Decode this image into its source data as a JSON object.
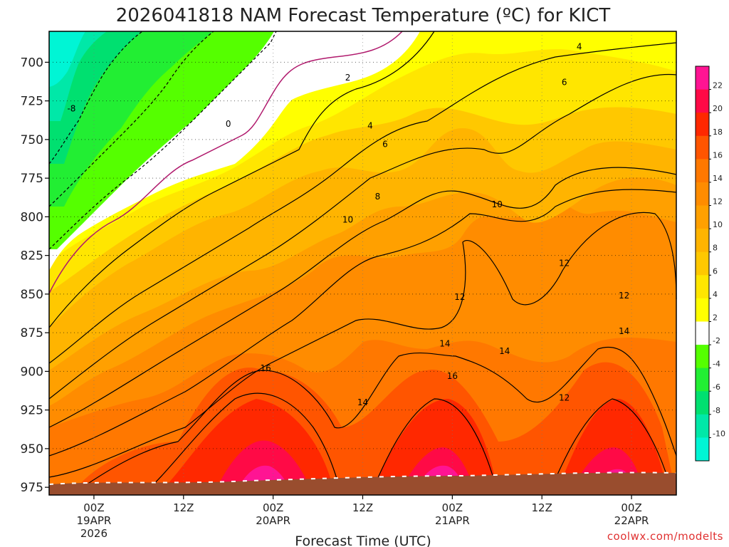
{
  "chart_data": {
    "type": "heatmap",
    "title": "2026041818 NAM Forecast Temperature (ºC) for KICT",
    "xlabel": "Forecast Time (UTC)",
    "ylabel": "",
    "y_ticks": [
      700,
      725,
      750,
      775,
      800,
      825,
      850,
      875,
      900,
      925,
      950,
      975
    ],
    "ylim": [
      980,
      680
    ],
    "x_ticks": [
      {
        "hour": 6,
        "lines": [
          "00Z",
          "19APR",
          "2026"
        ]
      },
      {
        "hour": 18,
        "lines": [
          "12Z"
        ]
      },
      {
        "hour": 30,
        "lines": [
          "00Z",
          "20APR"
        ]
      },
      {
        "hour": 42,
        "lines": [
          "12Z"
        ]
      },
      {
        "hour": 54,
        "lines": [
          "00Z",
          "21APR"
        ]
      },
      {
        "hour": 66,
        "lines": [
          "12Z"
        ]
      },
      {
        "hour": 78,
        "lines": [
          "00Z",
          "22APR"
        ]
      }
    ],
    "xlim": [
      0,
      84
    ],
    "colorbar": {
      "tick_labels": [
        "22",
        "20",
        "18",
        "16",
        "14",
        "12",
        "10",
        "8",
        "6",
        "4",
        "2",
        "-2",
        "-4",
        "-6",
        "-8",
        "-10"
      ],
      "colors": [
        "#ff1493",
        "#ff0a46",
        "#ff2800",
        "#ff5500",
        "#ff7800",
        "#ff8c00",
        "#ffa000",
        "#ffb400",
        "#ffc800",
        "#ffe600",
        "#ffff00",
        "#ffffff",
        "#55ff00",
        "#22ee33",
        "#00e070",
        "#00e8a8",
        "#00f5d5"
      ]
    },
    "contour_labels": [
      {
        "text": "-8",
        "hour": 3,
        "hPa": 730
      },
      {
        "text": "0",
        "hour": 24,
        "hPa": 740
      },
      {
        "text": "2",
        "hour": 40,
        "hPa": 710
      },
      {
        "text": "4",
        "hour": 43,
        "hPa": 741
      },
      {
        "text": "4",
        "hour": 71,
        "hPa": 690
      },
      {
        "text": "6",
        "hour": 45,
        "hPa": 753
      },
      {
        "text": "6",
        "hour": 69,
        "hPa": 713
      },
      {
        "text": "8",
        "hour": 44,
        "hPa": 787
      },
      {
        "text": "10",
        "hour": 40,
        "hPa": 802
      },
      {
        "text": "10",
        "hour": 60,
        "hPa": 792
      },
      {
        "text": "12",
        "hour": 55,
        "hPa": 852
      },
      {
        "text": "12",
        "hour": 69,
        "hPa": 830
      },
      {
        "text": "12",
        "hour": 77,
        "hPa": 851
      },
      {
        "text": "12",
        "hour": 69,
        "hPa": 917
      },
      {
        "text": "14",
        "hour": 53,
        "hPa": 882
      },
      {
        "text": "14",
        "hour": 61,
        "hPa": 887
      },
      {
        "text": "14",
        "hour": 42,
        "hPa": 920
      },
      {
        "text": "14",
        "hour": 77,
        "hPa": 874
      },
      {
        "text": "16",
        "hour": 29,
        "hPa": 898
      },
      {
        "text": "16",
        "hour": 54,
        "hPa": 903
      }
    ],
    "terrain_color": "#994d2e",
    "grid": true
  },
  "credit": "coolwx.com/modelts"
}
